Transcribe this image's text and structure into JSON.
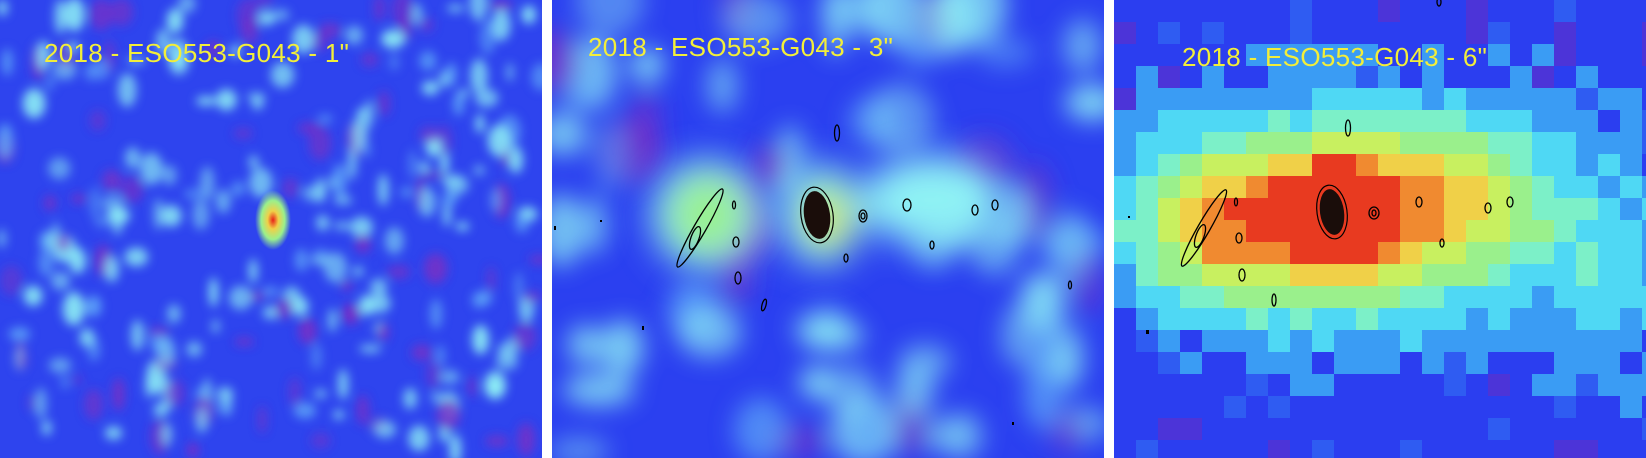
{
  "panels": [
    {
      "label": "2018 - ESO553-G043 - 1\"",
      "smoothing": "1\""
    },
    {
      "label": "2018 - ESO553-G043 - 3\"",
      "smoothing": "3\""
    },
    {
      "label": "2018 - ESO553-G043 - 6\"",
      "smoothing": "6\""
    }
  ],
  "colors": {
    "background_blue": "#2a3df0",
    "noise_cyan": "#8ff2f4",
    "noise_purple": "#7a2fc4",
    "source_green": "#9af08c",
    "source_yellow": "#f0e050",
    "source_red": "#e83020",
    "contour_black": "#000000",
    "label_yellow": "#f2ee3a"
  }
}
